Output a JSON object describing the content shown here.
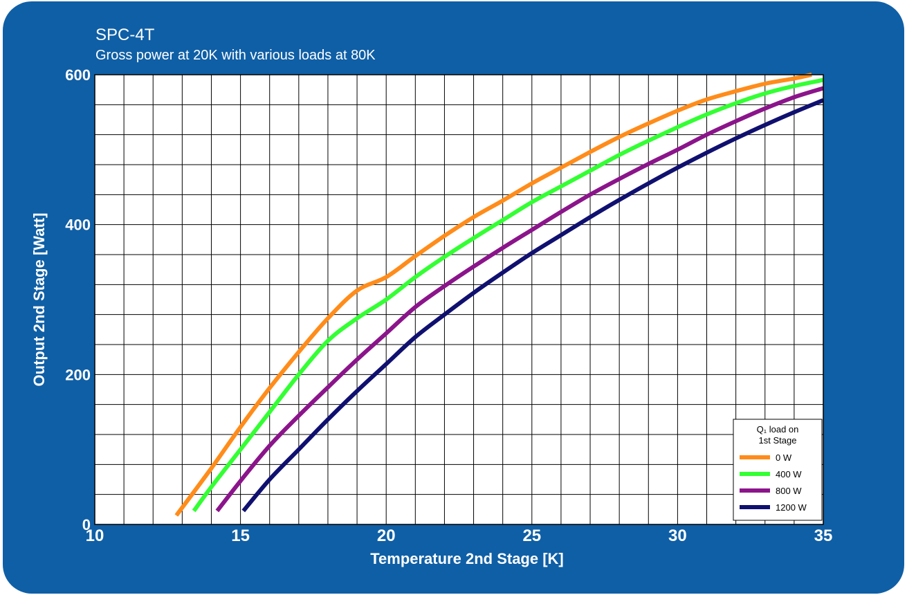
{
  "chart_data": {
    "type": "line",
    "title": "SPC-4T",
    "subtitle": "Gross power at 20K with various loads at 80K",
    "xlabel": "Temperature 2nd Stage [K]",
    "ylabel": "Output 2nd Stage [Watt]",
    "xlim": [
      10,
      35
    ],
    "ylim": [
      0,
      600
    ],
    "x_ticks": [
      10,
      15,
      20,
      25,
      30,
      35
    ],
    "y_ticks": [
      0,
      200,
      400,
      600
    ],
    "grid": true,
    "legend": {
      "title_line1": "Q₁ load on",
      "title_line2": "1st Stage",
      "placement": "bottom-right"
    },
    "series": [
      {
        "name": "0 W",
        "color": "#ff8c1a",
        "points": [
          [
            12.8,
            12
          ],
          [
            14,
            75
          ],
          [
            15,
            130
          ],
          [
            16,
            182
          ],
          [
            17,
            230
          ],
          [
            18,
            275
          ],
          [
            19,
            312
          ],
          [
            20,
            330
          ],
          [
            21,
            358
          ],
          [
            22,
            385
          ],
          [
            23,
            410
          ],
          [
            24,
            432
          ],
          [
            25,
            455
          ],
          [
            26,
            476
          ],
          [
            27,
            497
          ],
          [
            28,
            517
          ],
          [
            29,
            535
          ],
          [
            30,
            552
          ],
          [
            31,
            567
          ],
          [
            32,
            578
          ],
          [
            33,
            588
          ],
          [
            34,
            595
          ],
          [
            34.6,
            600
          ]
        ]
      },
      {
        "name": "400 W",
        "color": "#33ff33",
        "points": [
          [
            13.4,
            18
          ],
          [
            14,
            50
          ],
          [
            15,
            100
          ],
          [
            16,
            150
          ],
          [
            17,
            200
          ],
          [
            18,
            245
          ],
          [
            19,
            275
          ],
          [
            20,
            300
          ],
          [
            21,
            330
          ],
          [
            22,
            357
          ],
          [
            23,
            382
          ],
          [
            24,
            406
          ],
          [
            25,
            430
          ],
          [
            26,
            451
          ],
          [
            27,
            472
          ],
          [
            28,
            493
          ],
          [
            29,
            512
          ],
          [
            30,
            530
          ],
          [
            31,
            547
          ],
          [
            32,
            562
          ],
          [
            33,
            575
          ],
          [
            34,
            585
          ],
          [
            35,
            593
          ]
        ]
      },
      {
        "name": "800 W",
        "color": "#8b148b",
        "points": [
          [
            14.2,
            18
          ],
          [
            15,
            58
          ],
          [
            16,
            105
          ],
          [
            17,
            145
          ],
          [
            18,
            183
          ],
          [
            19,
            220
          ],
          [
            20,
            255
          ],
          [
            21,
            290
          ],
          [
            22,
            318
          ],
          [
            23,
            344
          ],
          [
            24,
            369
          ],
          [
            25,
            393
          ],
          [
            26,
            417
          ],
          [
            27,
            440
          ],
          [
            28,
            461
          ],
          [
            29,
            481
          ],
          [
            30,
            500
          ],
          [
            31,
            520
          ],
          [
            32,
            538
          ],
          [
            33,
            555
          ],
          [
            34,
            570
          ],
          [
            35,
            582
          ]
        ]
      },
      {
        "name": "1200 W",
        "color": "#101070",
        "points": [
          [
            15.1,
            18
          ],
          [
            16,
            60
          ],
          [
            17,
            100
          ],
          [
            18,
            140
          ],
          [
            19,
            178
          ],
          [
            20,
            214
          ],
          [
            21,
            250
          ],
          [
            22,
            280
          ],
          [
            23,
            309
          ],
          [
            24,
            336
          ],
          [
            25,
            362
          ],
          [
            26,
            386
          ],
          [
            27,
            410
          ],
          [
            28,
            433
          ],
          [
            29,
            455
          ],
          [
            30,
            476
          ],
          [
            31,
            496
          ],
          [
            32,
            515
          ],
          [
            33,
            533
          ],
          [
            34,
            550
          ],
          [
            35,
            566
          ]
        ]
      }
    ]
  }
}
